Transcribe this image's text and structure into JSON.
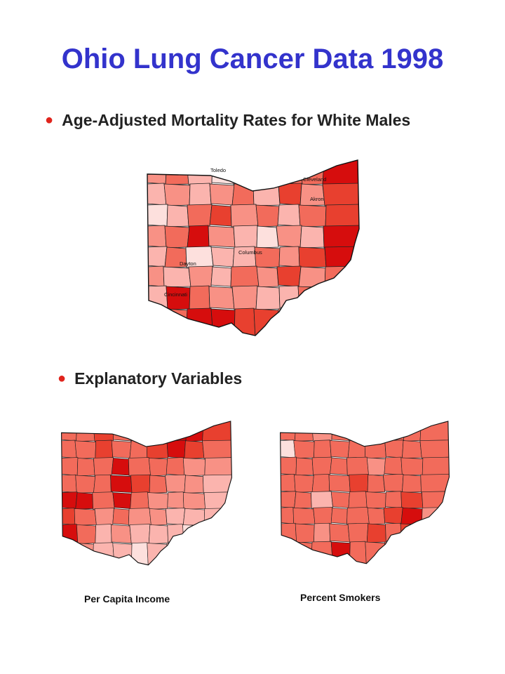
{
  "title": "Ohio Lung Cancer Data 1998",
  "bullets": {
    "mortality": "Age-Adjusted Mortality Rates for White Males",
    "explanatory": "Explanatory Variables"
  },
  "captions": {
    "income": "Per Capita Income",
    "smokers": "Percent Smokers"
  },
  "cities": [
    "Toledo",
    "Cleveland",
    "Akron",
    "Columbus",
    "Dayton",
    "Cincinnati"
  ],
  "colors": {
    "title": "#3333cc",
    "bullet": "#e0241c",
    "palette": [
      "#fde0dd",
      "#fbb4ae",
      "#f89185",
      "#f26b5b",
      "#e8402f",
      "#d60d0d"
    ]
  },
  "maps": {
    "mortality": {
      "name": "Age-Adjusted Mortality Rates for White Males",
      "classes": [
        [
          2,
          3,
          1,
          0,
          1,
          2,
          3,
          3,
          5
        ],
        [
          1,
          2,
          1,
          2,
          3,
          1,
          4,
          2,
          4
        ],
        [
          0,
          1,
          3,
          4,
          2,
          3,
          1,
          3,
          4
        ],
        [
          2,
          3,
          5,
          2,
          1,
          0,
          2,
          1,
          5
        ],
        [
          1,
          3,
          0,
          1,
          1,
          3,
          2,
          4,
          5
        ],
        [
          2,
          1,
          2,
          1,
          3,
          2,
          4,
          2,
          3
        ],
        [
          1,
          5,
          3,
          2,
          2,
          1,
          1,
          3,
          2
        ],
        [
          2,
          3,
          5,
          5,
          4,
          4,
          2,
          1,
          3
        ]
      ]
    },
    "income": {
      "name": "Per Capita Income",
      "classes": [
        [
          3,
          3,
          4,
          3,
          3,
          3,
          5,
          5,
          4
        ],
        [
          3,
          3,
          4,
          3,
          3,
          4,
          5,
          4,
          3
        ],
        [
          3,
          3,
          3,
          5,
          3,
          3,
          3,
          2,
          2
        ],
        [
          3,
          3,
          3,
          5,
          4,
          3,
          2,
          2,
          1
        ],
        [
          5,
          5,
          3,
          5,
          3,
          2,
          2,
          2,
          1
        ],
        [
          4,
          3,
          2,
          3,
          2,
          2,
          1,
          1,
          1
        ],
        [
          5,
          3,
          1,
          2,
          1,
          1,
          1,
          0,
          1
        ],
        [
          3,
          2,
          1,
          1,
          0,
          1,
          1,
          1,
          1
        ]
      ]
    },
    "smokers": {
      "name": "Percent Smokers",
      "classes": [
        [
          3,
          3,
          2,
          3,
          3,
          3,
          3,
          3,
          3
        ],
        [
          0,
          3,
          3,
          3,
          3,
          3,
          3,
          3,
          3
        ],
        [
          3,
          3,
          3,
          3,
          3,
          2,
          3,
          3,
          3
        ],
        [
          3,
          3,
          3,
          3,
          4,
          3,
          3,
          3,
          3
        ],
        [
          3,
          3,
          1,
          3,
          3,
          3,
          3,
          4,
          3
        ],
        [
          3,
          3,
          3,
          3,
          3,
          3,
          4,
          5,
          2
        ],
        [
          3,
          3,
          2,
          3,
          3,
          4,
          3,
          4,
          3
        ],
        [
          3,
          3,
          3,
          5,
          3,
          3,
          3,
          3,
          3
        ]
      ]
    }
  }
}
